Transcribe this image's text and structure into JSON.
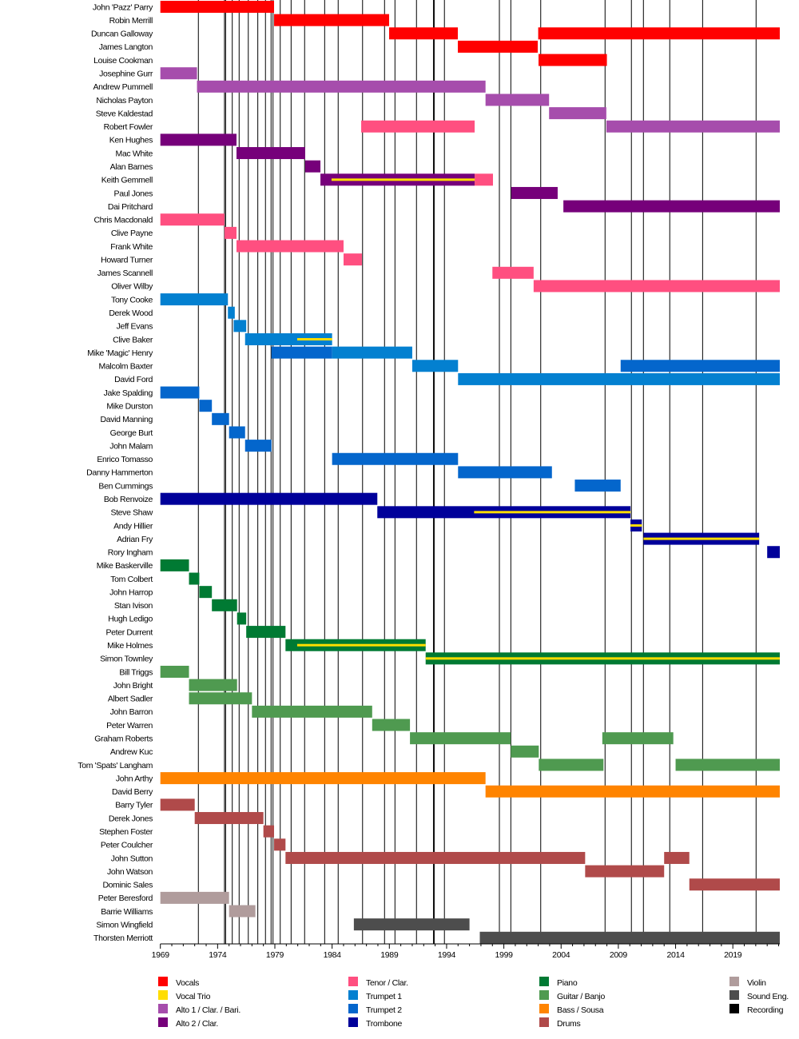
{
  "chart_data": {
    "type": "timeline",
    "title": "",
    "xlim": [
      1969,
      2023.1
    ],
    "x_ticks": [
      "1969",
      "1974",
      "1979",
      "1984",
      "1989",
      "1994",
      "1999",
      "2004",
      "2009",
      "2014",
      "2019"
    ],
    "minor_ticks": "yearly",
    "roles": [
      {
        "key": "vocals",
        "label": "Vocals",
        "color": "#ff0000"
      },
      {
        "key": "trio",
        "label": "Vocal Trio",
        "color": "#ffdd00"
      },
      {
        "key": "alto1",
        "label": "Alto 1 / Clar. / Bari.",
        "color": "#a64dac"
      },
      {
        "key": "alto2",
        "label": "Alto 2 / Clar.",
        "color": "#76007a"
      },
      {
        "key": "tenor",
        "label": "Tenor / Clar.",
        "color": "#ff4f80"
      },
      {
        "key": "trumpet1",
        "label": "Trumpet 1",
        "color": "#0380d0"
      },
      {
        "key": "trumpet2",
        "label": "Trumpet 2",
        "color": "#0466cc"
      },
      {
        "key": "trombone",
        "label": "Trombone",
        "color": "#00009a"
      },
      {
        "key": "piano",
        "label": "Piano",
        "color": "#007a33"
      },
      {
        "key": "guitar",
        "label": "Guitar / Banjo",
        "color": "#4f9a50"
      },
      {
        "key": "bass",
        "label": "Bass / Sousa",
        "color": "#ff8400"
      },
      {
        "key": "drums",
        "label": "Drums",
        "color": "#b04a4a"
      },
      {
        "key": "violin",
        "label": "Violin",
        "color": "#b09c9c"
      },
      {
        "key": "sound",
        "label": "Sound Eng.",
        "color": "#4d4d4d"
      },
      {
        "key": "recording",
        "label": "Recording",
        "color": "#000000"
      }
    ],
    "recordings": [
      1972.32,
      1974.6,
      1974.7,
      1975.28,
      1975.88,
      1976.68,
      1977.51,
      1978.18,
      1978.67,
      1978.84,
      1979.47,
      1980.42,
      1981.6,
      1983.35,
      1984.53,
      1986.66,
      1988.58,
      1989.49,
      1991.37,
      1992.85,
      1992.93,
      1993.81,
      1998.61,
      1999.61,
      2002.22,
      2007.84,
      2010.14,
      2011.19,
      2013.49,
      2016.36,
      2021.03
    ],
    "members": [
      {
        "name": "John 'Pazz' Parry",
        "spans": [
          [
            "vocals",
            1969,
            1978.93
          ]
        ]
      },
      {
        "name": "Robin Merrill",
        "spans": [
          [
            "vocals",
            1978.93,
            1988.98
          ]
        ]
      },
      {
        "name": "Duncan Galloway",
        "spans": [
          [
            "vocals",
            1988.98,
            1994.98
          ],
          [
            "vocals",
            2002.0,
            2023.1
          ]
        ]
      },
      {
        "name": "James Langton",
        "spans": [
          [
            "vocals",
            1994.98,
            2001.96
          ]
        ]
      },
      {
        "name": "Louise Cookman",
        "spans": [
          [
            "vocals",
            2002.03,
            2008.0
          ]
        ]
      },
      {
        "name": "Josephine Gurr",
        "spans": [
          [
            "alto1",
            1969,
            1972.2
          ]
        ]
      },
      {
        "name": "Andrew Pummell",
        "spans": [
          [
            "alto1",
            1972.2,
            1997.4
          ]
        ]
      },
      {
        "name": "Nicholas Payton",
        "spans": [
          [
            "alto1",
            1997.4,
            2002.95
          ]
        ]
      },
      {
        "name": "Steve Kaldestad",
        "spans": [
          [
            "alto1",
            2002.95,
            2007.95
          ]
        ]
      },
      {
        "name": "Robert Fowler",
        "spans": [
          [
            "tenor",
            1986.54,
            1996.45
          ],
          [
            "alto1",
            2007.95,
            2023.1
          ]
        ]
      },
      {
        "name": "Ken Hughes",
        "spans": [
          [
            "alto2",
            1969,
            1975.65
          ]
        ]
      },
      {
        "name": "Mac White",
        "spans": [
          [
            "alto2",
            1975.65,
            1981.65
          ]
        ]
      },
      {
        "name": "Alan Barnes",
        "spans": [
          [
            "alto2",
            1981.65,
            1982.98
          ]
        ]
      },
      {
        "name": "Keith Gemmell",
        "spans": [
          [
            "alto2",
            1982.98,
            1996.45
          ],
          [
            "tenor",
            1996.45,
            1998.05
          ]
        ],
        "trio": [
          [
            1983.95,
            1996.45
          ]
        ]
      },
      {
        "name": "Paul Jones",
        "spans": [
          [
            "alto2",
            1999.65,
            2003.7
          ]
        ]
      },
      {
        "name": "Dai Pritchard",
        "spans": [
          [
            "alto2",
            2004.2,
            2023.1
          ]
        ]
      },
      {
        "name": "Chris Macdonald",
        "spans": [
          [
            "tenor",
            1969,
            1974.6
          ]
        ]
      },
      {
        "name": "Clive Payne",
        "spans": [
          [
            "tenor",
            1974.6,
            1975.65
          ]
        ]
      },
      {
        "name": "Frank White",
        "spans": [
          [
            "tenor",
            1975.65,
            1985.0
          ]
        ]
      },
      {
        "name": "Howard Turner",
        "spans": [
          [
            "tenor",
            1985.0,
            1986.6
          ]
        ]
      },
      {
        "name": "James Scannell",
        "spans": [
          [
            "tenor",
            1998.0,
            2001.6
          ]
        ]
      },
      {
        "name": "Oliver Wilby",
        "spans": [
          [
            "tenor",
            2001.6,
            2023.1
          ]
        ]
      },
      {
        "name": "Tony Cooke",
        "spans": [
          [
            "trumpet1",
            1969,
            1974.9
          ]
        ]
      },
      {
        "name": "Derek Wood",
        "spans": [
          [
            "trumpet1",
            1974.9,
            1975.5
          ]
        ]
      },
      {
        "name": "Jeff Evans",
        "spans": [
          [
            "trumpet1",
            1975.4,
            1976.5
          ]
        ]
      },
      {
        "name": "Clive Baker",
        "spans": [
          [
            "trumpet1",
            1976.4,
            1984.0
          ]
        ],
        "trio": [
          [
            1980.95,
            1984.0
          ]
        ]
      },
      {
        "name": "Mike 'Magic' Henry",
        "spans": [
          [
            "trumpet2",
            1978.7,
            1984.0
          ],
          [
            "trumpet1",
            1984.0,
            1991.0
          ]
        ]
      },
      {
        "name": "Malcolm Baxter",
        "spans": [
          [
            "trumpet1",
            1991.0,
            1995.0
          ],
          [
            "trumpet2",
            2009.2,
            2023.1
          ]
        ]
      },
      {
        "name": "David Ford",
        "spans": [
          [
            "trumpet1",
            1995.0,
            2023.1
          ]
        ]
      },
      {
        "name": "Jake Spalding",
        "spans": [
          [
            "trumpet2",
            1969,
            1972.4
          ]
        ]
      },
      {
        "name": "Mike Durston",
        "spans": [
          [
            "trumpet2",
            1972.4,
            1973.5
          ]
        ]
      },
      {
        "name": "David Manning",
        "spans": [
          [
            "trumpet2",
            1973.5,
            1975.0
          ]
        ]
      },
      {
        "name": "George Burt",
        "spans": [
          [
            "trumpet2",
            1975.0,
            1976.4
          ]
        ]
      },
      {
        "name": "John Malam",
        "spans": [
          [
            "trumpet2",
            1976.4,
            1978.7
          ]
        ]
      },
      {
        "name": "Enrico Tomasso",
        "spans": [
          [
            "trumpet2",
            1984.0,
            1995.0
          ]
        ]
      },
      {
        "name": "Danny Hammerton",
        "spans": [
          [
            "trumpet2",
            1995.0,
            2003.2
          ]
        ]
      },
      {
        "name": "Ben Cummings",
        "spans": [
          [
            "trumpet2",
            2005.2,
            2009.2
          ]
        ]
      },
      {
        "name": "Bob Renvoize",
        "spans": [
          [
            "trombone",
            1969,
            1987.95
          ]
        ]
      },
      {
        "name": "Steve Shaw",
        "spans": [
          [
            "trombone",
            1987.95,
            2010.06
          ]
        ],
        "trio": [
          [
            1996.4,
            2010.06
          ]
        ]
      },
      {
        "name": "Andy Hillier",
        "spans": [
          [
            "trombone",
            2010.06,
            2011.05
          ]
        ],
        "trio": [
          [
            2010.06,
            2011.05
          ]
        ]
      },
      {
        "name": "Adrian Fry",
        "spans": [
          [
            "trombone",
            2011.2,
            2021.3
          ]
        ],
        "trio": [
          [
            2011.2,
            2021.3
          ]
        ]
      },
      {
        "name": "Rory Ingham",
        "spans": [
          [
            "trombone",
            2022.0,
            2023.1
          ]
        ]
      },
      {
        "name": "Mike Baskerville",
        "spans": [
          [
            "piano",
            1969,
            1971.5
          ]
        ]
      },
      {
        "name": "Tom Colbert",
        "spans": [
          [
            "piano",
            1971.5,
            1972.4
          ]
        ]
      },
      {
        "name": "John Harrop",
        "spans": [
          [
            "piano",
            1972.4,
            1973.5
          ]
        ]
      },
      {
        "name": "Stan Ivison",
        "spans": [
          [
            "piano",
            1973.5,
            1975.7
          ]
        ]
      },
      {
        "name": "Hugh Ledigo",
        "spans": [
          [
            "piano",
            1975.7,
            1976.5
          ]
        ]
      },
      {
        "name": "Peter Durrent",
        "spans": [
          [
            "piano",
            1976.5,
            1979.93
          ]
        ]
      },
      {
        "name": "Mike Holmes",
        "spans": [
          [
            "piano",
            1979.93,
            1992.17
          ]
        ],
        "trio": [
          [
            1980.95,
            1992.17
          ]
        ]
      },
      {
        "name": "Simon Townley",
        "spans": [
          [
            "piano",
            1992.17,
            2023.1
          ]
        ],
        "trio": [
          [
            1992.17,
            2023.1
          ]
        ]
      },
      {
        "name": "Bill Triggs",
        "spans": [
          [
            "guitar",
            1969,
            1971.5
          ]
        ]
      },
      {
        "name": "John Bright",
        "spans": [
          [
            "guitar",
            1971.5,
            1975.7
          ]
        ]
      },
      {
        "name": "Albert Sadler",
        "spans": [
          [
            "guitar",
            1971.5,
            1977.0
          ]
        ]
      },
      {
        "name": "John Barron",
        "spans": [
          [
            "guitar",
            1977.0,
            1987.5
          ]
        ]
      },
      {
        "name": "Peter Warren",
        "spans": [
          [
            "guitar",
            1987.5,
            1990.8
          ]
        ]
      },
      {
        "name": "Graham Roberts",
        "spans": [
          [
            "guitar",
            1990.8,
            1999.6
          ],
          [
            "guitar",
            2007.6,
            2013.8
          ]
        ]
      },
      {
        "name": "Andrew Kuc",
        "spans": [
          [
            "guitar",
            1999.6,
            2002.05
          ]
        ]
      },
      {
        "name": "Tom 'Spats' Langham",
        "spans": [
          [
            "guitar",
            2002.05,
            2007.7
          ],
          [
            "guitar",
            2014.0,
            2023.1
          ]
        ]
      },
      {
        "name": "John Arthy",
        "spans": [
          [
            "bass",
            1969,
            1997.4
          ]
        ]
      },
      {
        "name": "David Berry",
        "spans": [
          [
            "bass",
            1997.4,
            2023.1
          ]
        ]
      },
      {
        "name": "Barry Tyler",
        "spans": [
          [
            "drums",
            1969,
            1972.0
          ]
        ]
      },
      {
        "name": "Derek Jones",
        "spans": [
          [
            "drums",
            1972.0,
            1978.0
          ]
        ]
      },
      {
        "name": "Stephen Foster",
        "spans": [
          [
            "drums",
            1978.0,
            1978.93
          ]
        ]
      },
      {
        "name": "Peter Coulcher",
        "spans": [
          [
            "drums",
            1978.93,
            1979.93
          ]
        ]
      },
      {
        "name": "John Sutton",
        "spans": [
          [
            "drums",
            1979.93,
            2006.1
          ],
          [
            "drums",
            2013.0,
            2015.2
          ]
        ]
      },
      {
        "name": "John Watson",
        "spans": [
          [
            "drums",
            2006.1,
            2013.0
          ]
        ]
      },
      {
        "name": "Dominic Sales",
        "spans": [
          [
            "drums",
            2015.2,
            2023.1
          ]
        ]
      },
      {
        "name": "Peter Beresford",
        "spans": [
          [
            "violin",
            1969,
            1975.0
          ]
        ]
      },
      {
        "name": "Barrie Williams",
        "spans": [
          [
            "violin",
            1975.0,
            1977.3
          ]
        ]
      },
      {
        "name": "Simon Wingfield",
        "spans": [
          [
            "sound",
            1985.9,
            1996.0
          ]
        ]
      },
      {
        "name": "Thorsten Merriott",
        "spans": [
          [
            "sound",
            1996.9,
            2023.1
          ]
        ]
      }
    ]
  }
}
